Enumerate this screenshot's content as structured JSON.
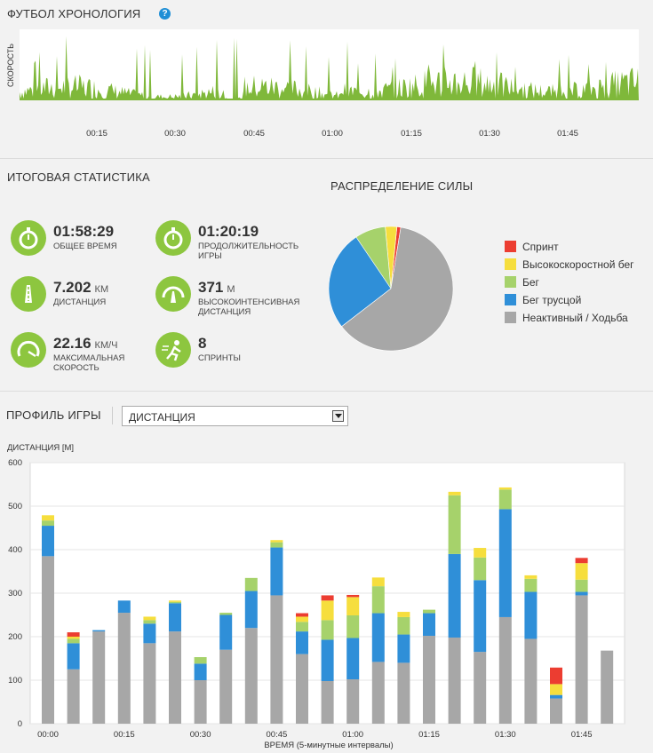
{
  "timeline": {
    "title": "ФУТБОЛ ХРОНОЛОГИЯ",
    "help": "?",
    "ylabel": "СКОРОСТЬ",
    "ticks": [
      "00:15",
      "00:30",
      "00:45",
      "01:00",
      "01:15",
      "01:30",
      "01:45"
    ]
  },
  "summary": {
    "title": "ИТОГОВАЯ СТАТИСТИКА",
    "stats": [
      {
        "value": "01:58:29",
        "unit": "",
        "label": "ОБЩЕЕ ВРЕМЯ",
        "icon": "stopwatch-icon"
      },
      {
        "value": "01:20:19",
        "unit": "",
        "label": "ПРОДОЛЖИТЕЛЬНОСТЬ ИГРЫ",
        "icon": "stopwatch-icon"
      },
      {
        "value": "7.202",
        "unit": "КМ",
        "label": "ДИСТАНЦИЯ",
        "icon": "road-icon"
      },
      {
        "value": "371",
        "unit": "М",
        "label": "ВЫСОКОИНТЕНСИВНАЯ ДИСТАНЦИЯ",
        "icon": "high-intensity-road-icon"
      },
      {
        "value": "22.16",
        "unit": "КМ/Ч",
        "label": "МАКСИМАЛЬНАЯ СКОРОСТЬ",
        "icon": "speedometer-icon"
      },
      {
        "value": "8",
        "unit": "",
        "label": "СПРИНТЫ",
        "icon": "sprinter-icon"
      }
    ]
  },
  "distribution": {
    "title": "РАСПРЕДЕЛЕНИЕ СИЛЫ",
    "slices": [
      {
        "name": "Спринт",
        "value": 1,
        "color": "#ec3d31"
      },
      {
        "name": "Высокоскоростной бег",
        "value": 3,
        "color": "#f6de3d"
      },
      {
        "name": "Бег",
        "value": 8,
        "color": "#a6d26b"
      },
      {
        "name": "Бег трусцой",
        "value": 26,
        "color": "#2f8fd8"
      },
      {
        "name": "Неактивный / Ходьба",
        "value": 62,
        "color": "#a7a7a7"
      }
    ]
  },
  "profile": {
    "title": "ПРОФИЛЬ ИГРЫ",
    "select_value": "ДИСТАНЦИЯ"
  },
  "chart_data": {
    "type": "bar",
    "stacked": true,
    "ylabel": "ДИСТАНЦИЯ [М]",
    "xlabel": "ВРЕМЯ (5-минутные интервалы)",
    "ylim": [
      0,
      600
    ],
    "yticks": [
      0,
      100,
      200,
      300,
      400,
      500,
      600
    ],
    "grid": true,
    "xtick_labels": [
      "00:00",
      "00:15",
      "00:30",
      "00:45",
      "01:00",
      "01:15",
      "01:30",
      "01:45"
    ],
    "xtick_every": 3,
    "categories": [
      "00:00",
      "00:05",
      "00:10",
      "00:15",
      "00:20",
      "00:25",
      "00:30",
      "00:35",
      "00:40",
      "00:45",
      "00:50",
      "00:55",
      "01:00",
      "01:05",
      "01:10",
      "01:15",
      "01:20",
      "01:25",
      "01:30",
      "01:35",
      "01:40",
      "01:45",
      "01:50"
    ],
    "series": [
      {
        "name": "Неактивный / Ходьба",
        "color": "#a7a7a7",
        "values": [
          385,
          125,
          212,
          255,
          185,
          212,
          100,
          170,
          220,
          295,
          160,
          98,
          102,
          142,
          140,
          202,
          198,
          165,
          245,
          195,
          58,
          295,
          168
        ]
      },
      {
        "name": "Бег трусцой",
        "color": "#2f8fd8",
        "values": [
          70,
          60,
          3,
          28,
          45,
          65,
          38,
          80,
          85,
          110,
          52,
          95,
          95,
          112,
          65,
          52,
          192,
          165,
          248,
          108,
          8,
          8,
          0
        ]
      },
      {
        "name": "Бег",
        "color": "#a6d26b",
        "values": [
          12,
          10,
          0,
          0,
          8,
          3,
          15,
          5,
          30,
          12,
          22,
          45,
          52,
          62,
          40,
          8,
          135,
          52,
          45,
          30,
          0,
          28,
          0
        ]
      },
      {
        "name": "Высокоскоростной бег",
        "color": "#f6de3d",
        "values": [
          12,
          5,
          0,
          0,
          8,
          3,
          0,
          0,
          0,
          5,
          12,
          45,
          42,
          20,
          12,
          0,
          8,
          22,
          5,
          8,
          25,
          38,
          0
        ]
      },
      {
        "name": "Спринт",
        "color": "#ec3d31",
        "values": [
          0,
          10,
          0,
          0,
          0,
          0,
          0,
          0,
          0,
          0,
          8,
          12,
          5,
          0,
          0,
          0,
          0,
          0,
          0,
          0,
          38,
          12,
          0
        ]
      }
    ]
  }
}
